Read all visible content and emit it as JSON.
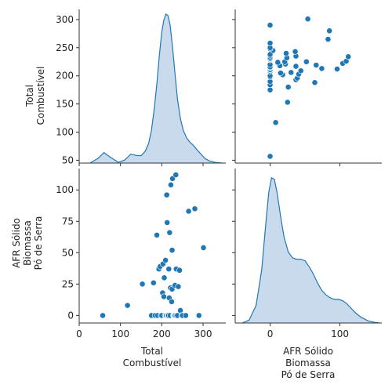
{
  "chart_data": {
    "type": "pairplot",
    "colors": {
      "marker": "#1f77b4",
      "kde_fill": "#c3d6ea",
      "kde_line": "#1f77b4",
      "axis": "#333333"
    },
    "variables": [
      {
        "id": "total",
        "label_lines": [
          "Total",
          "Combustível"
        ],
        "range": [
          45,
          318
        ]
      },
      {
        "id": "afr",
        "label_lines": [
          "AFR Sólido",
          "Biomassa",
          "Pó de Serra"
        ],
        "range": [
          -6,
          117
        ]
      }
    ],
    "x_ranges": {
      "total": [
        0,
        355
      ],
      "afr": [
        -50,
        160
      ]
    },
    "ticks": {
      "total_y": [
        50,
        100,
        150,
        200,
        250,
        300
      ],
      "total_x": [
        0,
        100,
        200,
        300
      ],
      "afr_y": [
        0,
        25,
        50,
        75,
        100
      ],
      "afr_x": [
        0,
        100
      ]
    },
    "tick_labels": {
      "total_y": [
        "50",
        "100",
        "150",
        "200",
        "250",
        "300"
      ],
      "total_x": [
        "0",
        "100",
        "200",
        "300"
      ],
      "afr_y": [
        "0",
        "25",
        "50",
        "75",
        "100"
      ],
      "afr_x": [
        "0",
        "100"
      ]
    },
    "points": [
      {
        "total": 57,
        "afr": 0
      },
      {
        "total": 117,
        "afr": 8
      },
      {
        "total": 153,
        "afr": 25
      },
      {
        "total": 175,
        "afr": 0
      },
      {
        "total": 180,
        "afr": 26
      },
      {
        "total": 184,
        "afr": 0
      },
      {
        "total": 188,
        "afr": 64
      },
      {
        "total": 190,
        "afr": 0
      },
      {
        "total": 193,
        "afr": 37
      },
      {
        "total": 196,
        "afr": 39
      },
      {
        "total": 198,
        "afr": 0
      },
      {
        "total": 200,
        "afr": 0
      },
      {
        "total": 202,
        "afr": 18
      },
      {
        "total": 203,
        "afr": 41
      },
      {
        "total": 205,
        "afr": 15
      },
      {
        "total": 206,
        "afr": 30
      },
      {
        "total": 208,
        "afr": 0
      },
      {
        "total": 209,
        "afr": 44
      },
      {
        "total": 210,
        "afr": 0
      },
      {
        "total": 211,
        "afr": 0
      },
      {
        "total": 212,
        "afr": 96
      },
      {
        "total": 213,
        "afr": 74
      },
      {
        "total": 214,
        "afr": 0
      },
      {
        "total": 215,
        "afr": 0
      },
      {
        "total": 216,
        "afr": 0
      },
      {
        "total": 217,
        "afr": 37
      },
      {
        "total": 218,
        "afr": 14
      },
      {
        "total": 219,
        "afr": 66
      },
      {
        "total": 220,
        "afr": 0
      },
      {
        "total": 221,
        "afr": 22
      },
      {
        "total": 222,
        "afr": 104
      },
      {
        "total": 224,
        "afr": 11
      },
      {
        "total": 225,
        "afr": 21
      },
      {
        "total": 225,
        "afr": 52
      },
      {
        "total": 226,
        "afr": 109
      },
      {
        "total": 228,
        "afr": 0
      },
      {
        "total": 229,
        "afr": 0
      },
      {
        "total": 230,
        "afr": 0
      },
      {
        "total": 231,
        "afr": 0
      },
      {
        "total": 232,
        "afr": 24
      },
      {
        "total": 233,
        "afr": 0
      },
      {
        "total": 234,
        "afr": 112
      },
      {
        "total": 235,
        "afr": 37
      },
      {
        "total": 236,
        "afr": 0
      },
      {
        "total": 238,
        "afr": 0
      },
      {
        "total": 240,
        "afr": 23
      },
      {
        "total": 243,
        "afr": 36
      },
      {
        "total": 245,
        "afr": 4
      },
      {
        "total": 248,
        "afr": 0
      },
      {
        "total": 250,
        "afr": 0
      },
      {
        "total": 258,
        "afr": 0
      },
      {
        "total": 265,
        "afr": 83
      },
      {
        "total": 280,
        "afr": 85
      },
      {
        "total": 290,
        "afr": 0
      },
      {
        "total": 301,
        "afr": 54
      }
    ],
    "kde": {
      "total": {
        "x": [
          27,
          45,
          60,
          75,
          95,
          110,
          125,
          140,
          150,
          160,
          168,
          175,
          182,
          188,
          194,
          200,
          205,
          210,
          215,
          220,
          226,
          232,
          238,
          245,
          252,
          260,
          268,
          276,
          285,
          295,
          305,
          315,
          330,
          345
        ],
        "d": [
          0.002,
          0.03,
          0.07,
          0.04,
          0.005,
          0.02,
          0.06,
          0.05,
          0.05,
          0.08,
          0.13,
          0.22,
          0.37,
          0.53,
          0.72,
          0.88,
          0.96,
          1.0,
          0.99,
          0.93,
          0.78,
          0.6,
          0.43,
          0.3,
          0.22,
          0.17,
          0.14,
          0.12,
          0.09,
          0.06,
          0.03,
          0.015,
          0.004,
          0.001
        ]
      },
      "afr": {
        "x": [
          -40,
          -30,
          -20,
          -12,
          -6,
          -2,
          2,
          6,
          10,
          15,
          20,
          26,
          32,
          38,
          44,
          50,
          56,
          62,
          68,
          74,
          80,
          86,
          92,
          98,
          104,
          110,
          116,
          122,
          130,
          140,
          150,
          157
        ],
        "d": [
          0.0,
          0.02,
          0.12,
          0.36,
          0.68,
          0.88,
          0.98,
          0.97,
          0.88,
          0.72,
          0.58,
          0.48,
          0.44,
          0.43,
          0.43,
          0.42,
          0.38,
          0.33,
          0.27,
          0.22,
          0.19,
          0.17,
          0.16,
          0.16,
          0.15,
          0.13,
          0.1,
          0.07,
          0.04,
          0.015,
          0.004,
          0.0
        ]
      }
    }
  }
}
